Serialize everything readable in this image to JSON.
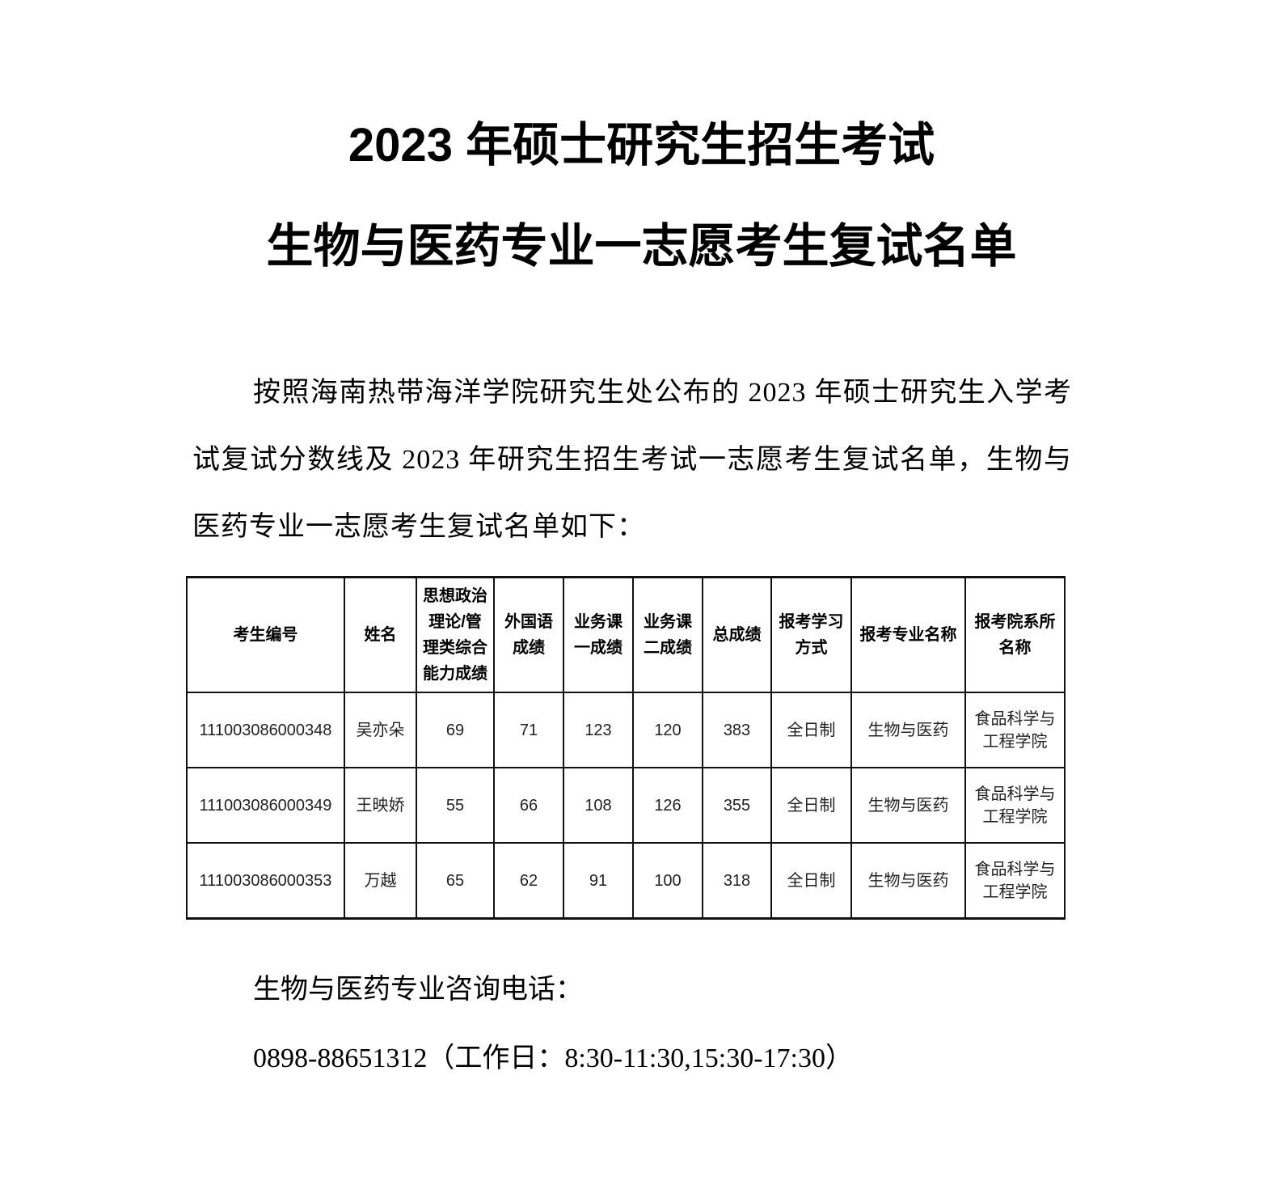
{
  "title_line1": "2023 年硕士研究生招生考试",
  "title_line2": "生物与医药专业一志愿考生复试名单",
  "intro": "按照海南热带海洋学院研究生处公布的 2023 年硕士研究生入学考试复试分数线及 2023 年研究生招生考试一志愿考生复试名单，生物与医药专业一志愿考生复试名单如下：",
  "table": {
    "headers": [
      "考生编号",
      "姓名",
      "思想政治理论/管理类综合能力成绩",
      "外国语成绩",
      "业务课一成绩",
      "业务课二成绩",
      "总成绩",
      "报考学习方式",
      "报考专业名称",
      "报考院系所名称"
    ],
    "rows": [
      [
        "111003086000348",
        "吴亦朵",
        "69",
        "71",
        "123",
        "120",
        "383",
        "全日制",
        "生物与医药",
        "食品科学与工程学院"
      ],
      [
        "111003086000349",
        "王映娇",
        "55",
        "66",
        "108",
        "126",
        "355",
        "全日制",
        "生物与医药",
        "食品科学与工程学院"
      ],
      [
        "111003086000353",
        "万越",
        "65",
        "62",
        "91",
        "100",
        "318",
        "全日制",
        "生物与医药",
        "食品科学与工程学院"
      ]
    ]
  },
  "contact_label": "生物与医药专业咨询电话：",
  "contact_phone": "0898-88651312（工作日：8:30-11:30,15:30-17:30）"
}
